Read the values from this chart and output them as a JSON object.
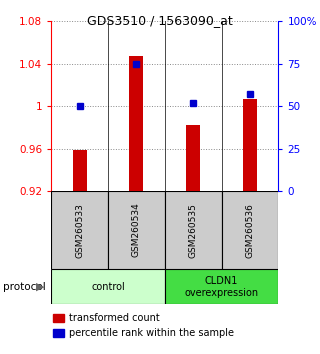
{
  "title": "GDS3510 / 1563090_at",
  "samples": [
    "GSM260533",
    "GSM260534",
    "GSM260535",
    "GSM260536"
  ],
  "bar_values": [
    0.959,
    1.047,
    0.982,
    1.007
  ],
  "percentile_values": [
    50,
    75,
    52,
    57
  ],
  "bar_color": "#cc0000",
  "dot_color": "#0000cc",
  "ylim_left": [
    0.92,
    1.08
  ],
  "yticks_left": [
    0.92,
    0.96,
    1.0,
    1.04,
    1.08
  ],
  "ytick_labels_left": [
    "0.92",
    "0.96",
    "1",
    "1.04",
    "1.08"
  ],
  "yticks_right": [
    0,
    25,
    50,
    75,
    100
  ],
  "ytick_labels_right": [
    "0",
    "25",
    "50",
    "75",
    "100%"
  ],
  "group_info": [
    {
      "label": "control",
      "start": 0,
      "end": 2,
      "color": "#ccffcc"
    },
    {
      "label": "CLDN1\noverexpression",
      "start": 2,
      "end": 4,
      "color": "#44dd44"
    }
  ],
  "protocol_label": "protocol",
  "legend_bar_label": "transformed count",
  "legend_dot_label": "percentile rank within the sample",
  "grid_color": "#888888",
  "bar_width": 0.25,
  "title_fontsize": 9
}
